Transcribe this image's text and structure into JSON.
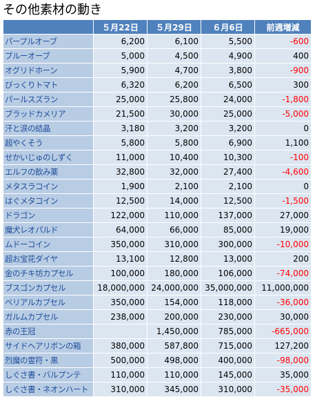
{
  "title": "その他素材の動き",
  "table": {
    "headers": [
      "５月22日",
      "５月29日",
      "６月6日",
      "前週増減"
    ],
    "rows": [
      [
        "パープルオーブ",
        "6,200",
        "6,100",
        "5,500",
        "-600"
      ],
      [
        "ブルーオーブ",
        "5,000",
        "4,500",
        "4,900",
        "400"
      ],
      [
        "オグリドホーン",
        "5,900",
        "4,700",
        "3,800",
        "-900"
      ],
      [
        "びっくりトマト",
        "6,320",
        "6,200",
        "6,500",
        "300"
      ],
      [
        "パールスズラン",
        "25,000",
        "25,800",
        "24,000",
        "-1,800"
      ],
      [
        "ブラッドカメリア",
        "21,500",
        "30,000",
        "25,000",
        "-5,000"
      ],
      [
        "汗と涙の結晶",
        "3,180",
        "3,200",
        "3,200",
        "0"
      ],
      [
        "超やくそう",
        "5,800",
        "5,800",
        "6,900",
        "1,100"
      ],
      [
        "せかいじゅのしずく",
        "11,000",
        "10,400",
        "10,300",
        "-100"
      ],
      [
        "エルフの飲み薬",
        "32,800",
        "32,000",
        "27,400",
        "-4,600"
      ],
      [
        "メタスラコイン",
        "1,900",
        "2,100",
        "2,100",
        "0"
      ],
      [
        "はぐメタコイン",
        "12,500",
        "14,000",
        "12,500",
        "-1,500"
      ],
      [
        "ドラゴン",
        "122,000",
        "110,000",
        "137,000",
        "27,000"
      ],
      [
        "魔犬レオパルド",
        "64,000",
        "66,000",
        "85,000",
        "19,000"
      ],
      [
        "ムドーコイン",
        "350,000",
        "310,000",
        "300,000",
        "-10,000"
      ],
      [
        "超お宝花ダイヤ",
        "13,100",
        "12,800",
        "13,000",
        "200"
      ],
      [
        "金のチキ坊カプセル",
        "100,000",
        "180,000",
        "106,000",
        "-74,000"
      ],
      [
        "ブスゴンカプセル",
        "18,000,000",
        "24,000,000",
        "35,000,000",
        "11,000,000"
      ],
      [
        "ベリアルカプセル",
        "350,000",
        "154,000",
        "118,000",
        "-36,000"
      ],
      [
        "ガルムカプセル",
        "238,000",
        "200,000",
        "230,000",
        "30,000"
      ],
      [
        "赤の王冠",
        null,
        "1,450,000",
        "785,000",
        "-665,000"
      ],
      [
        "サイドヘアリボンの箱",
        "380,000",
        "587,800",
        "715,000",
        "127,200"
      ],
      [
        "烈魔の霊符・黒",
        "500,000",
        "498,000",
        "400,000",
        "-98,000"
      ],
      [
        "しぐさ書・バルプンテ",
        "110,000",
        "110,000",
        "145,000",
        "35,000"
      ],
      [
        "しぐさ書・ネオンハート",
        "310,000",
        "345,000",
        "310,000",
        "-35,000"
      ]
    ]
  }
}
